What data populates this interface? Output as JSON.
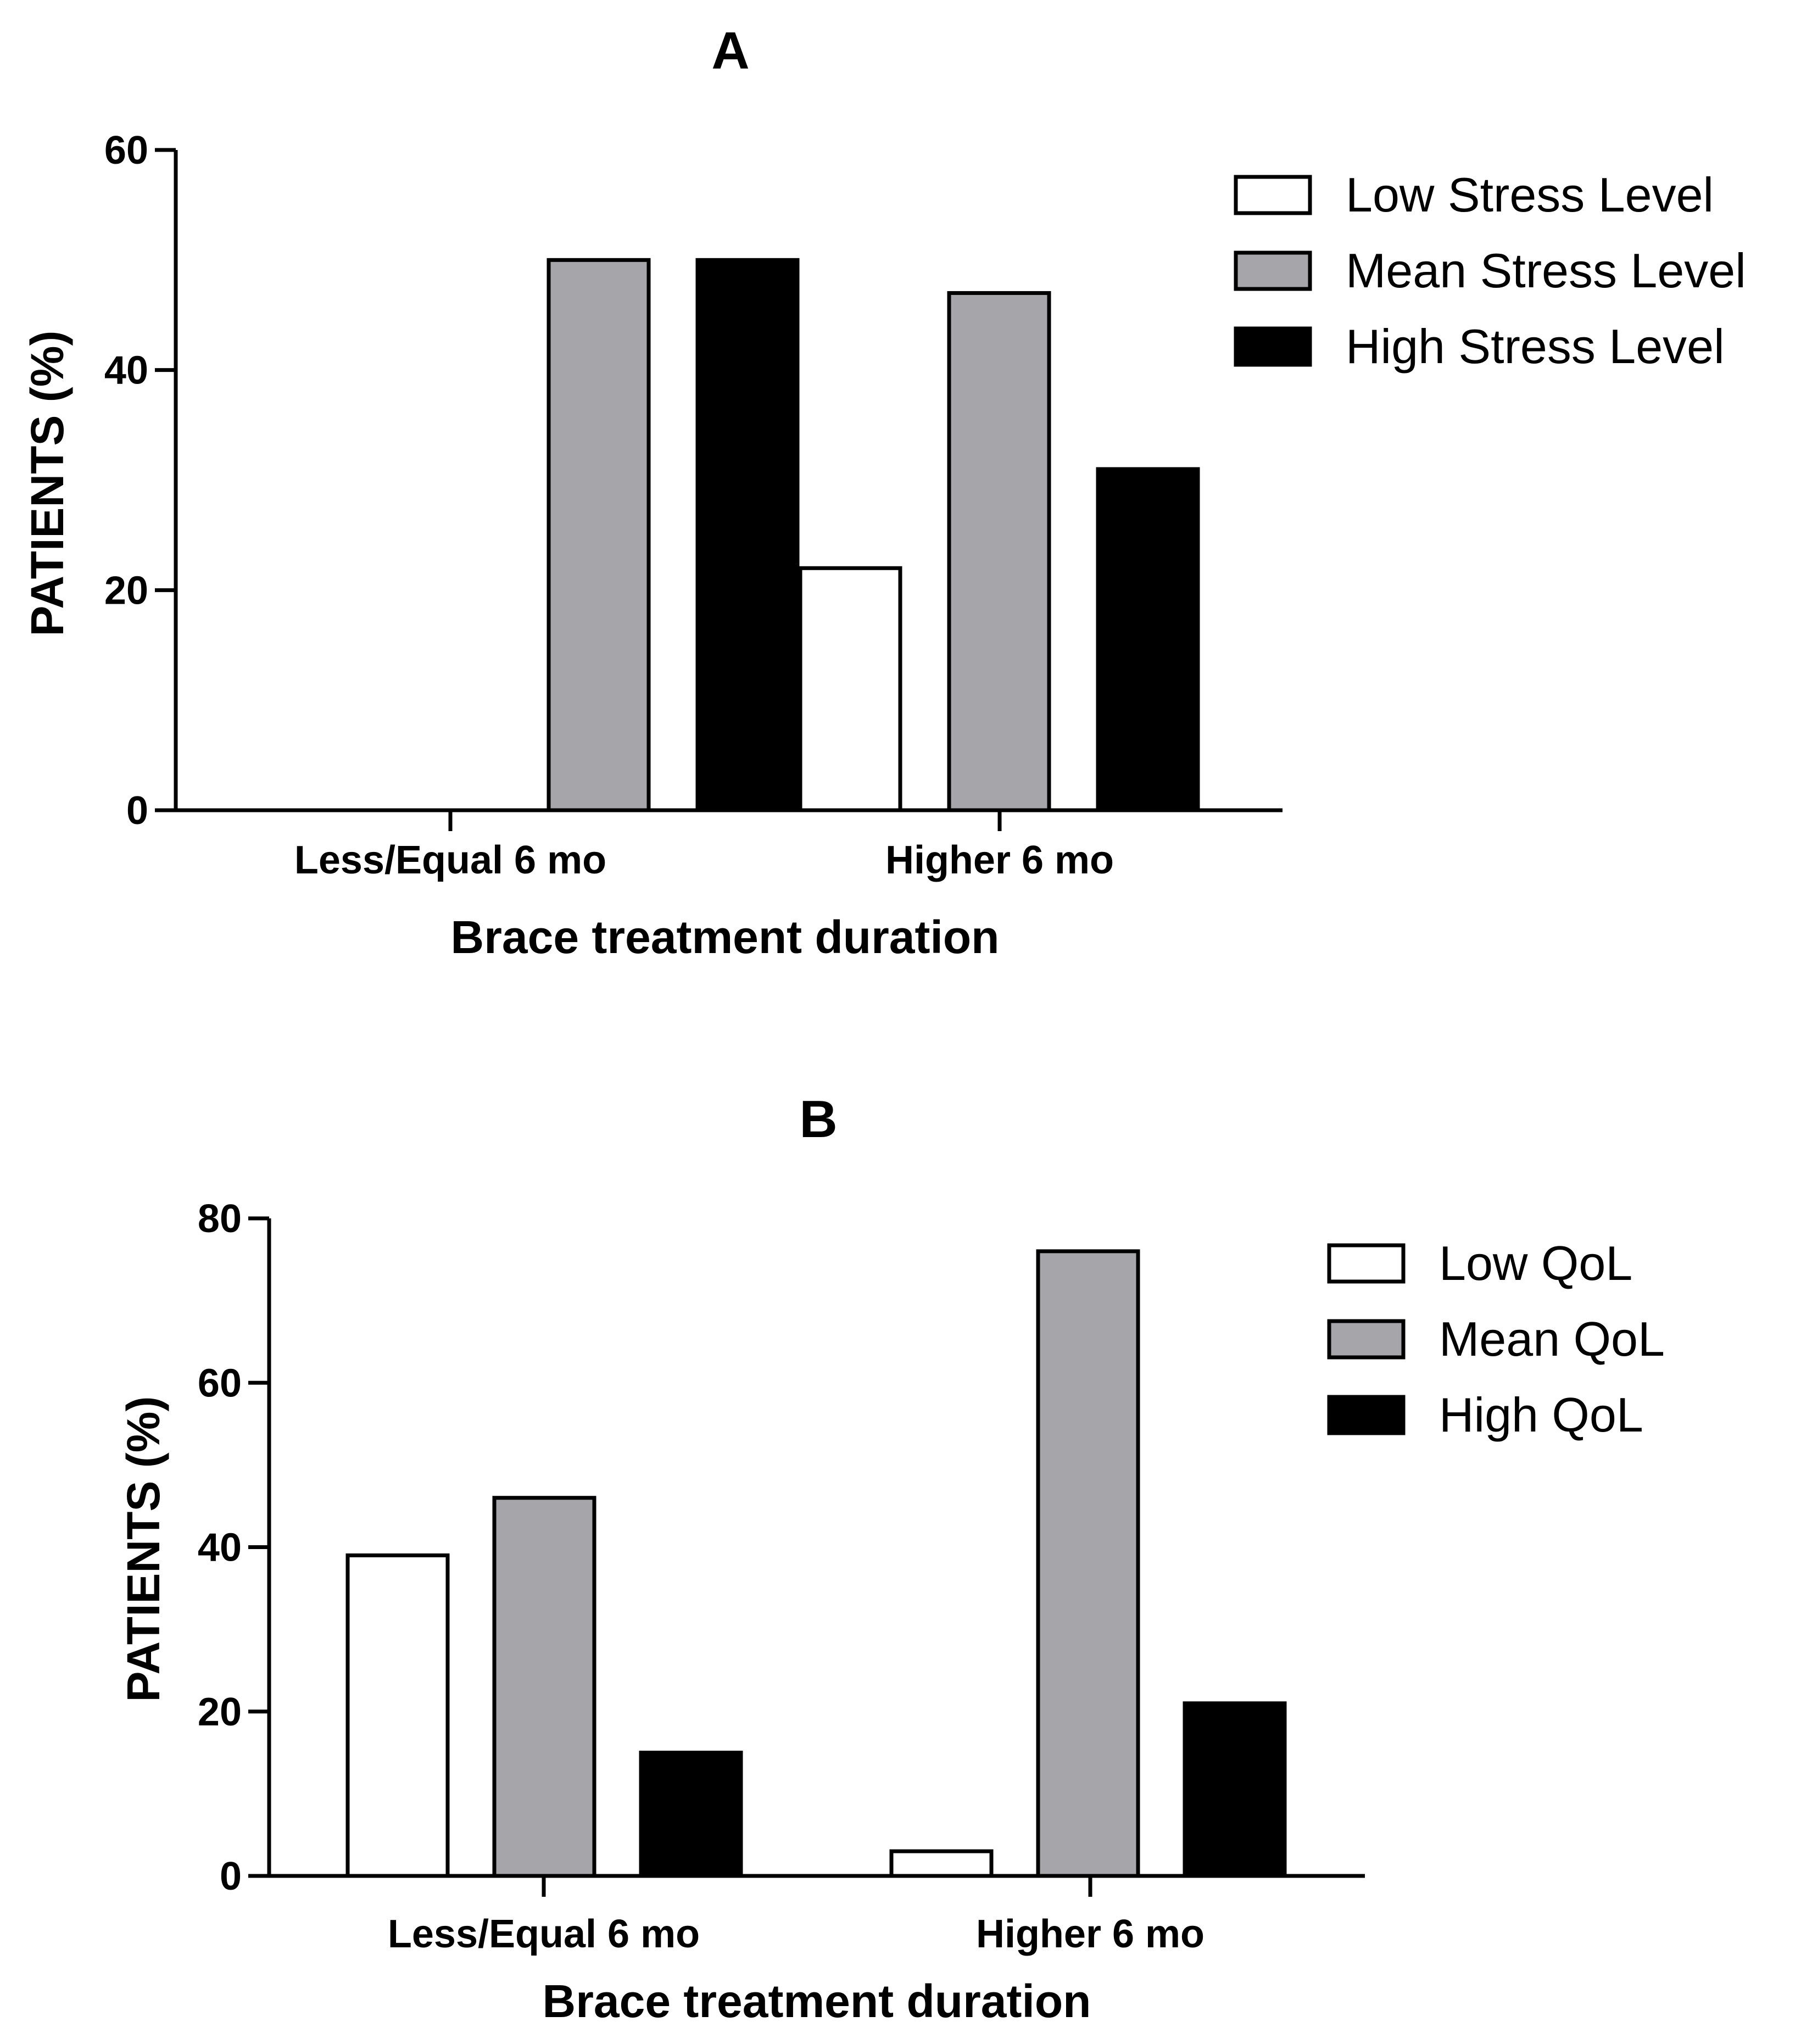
{
  "chart_data": [
    {
      "type": "bar",
      "title": "A",
      "xlabel": "Brace treatment duration",
      "ylabel": "PATIENTS (%)",
      "ylim": [
        0,
        60
      ],
      "yticks": [
        "0",
        "20",
        "40",
        "60"
      ],
      "categories": [
        "Less/Equal 6 mo",
        "Higher 6 mo"
      ],
      "series": [
        {
          "name": "Low Stress Level",
          "color": "#ffffff",
          "values": [
            0,
            22
          ]
        },
        {
          "name": "Mean Stress Level",
          "color": "#a6a6aa",
          "values": [
            50,
            47
          ]
        },
        {
          "name": "High Stress Level",
          "color": "#000000",
          "values": [
            50,
            31
          ]
        }
      ],
      "legend_position": "top-right"
    },
    {
      "type": "bar",
      "title": "B",
      "xlabel": "Brace treatment duration",
      "ylabel": "PATIENTS (%)",
      "ylim": [
        0,
        80
      ],
      "yticks": [
        "0",
        "20",
        "40",
        "60",
        "80"
      ],
      "categories": [
        "Less/Equal 6 mo",
        "Higher 6 mo"
      ],
      "series": [
        {
          "name": "Low QoL",
          "color": "#ffffff",
          "values": [
            39,
            3
          ]
        },
        {
          "name": "Mean QoL",
          "color": "#a6a6aa",
          "values": [
            46,
            76
          ]
        },
        {
          "name": "High QoL",
          "color": "#000000",
          "values": [
            15,
            21
          ]
        }
      ],
      "legend_position": "top-right"
    }
  ]
}
